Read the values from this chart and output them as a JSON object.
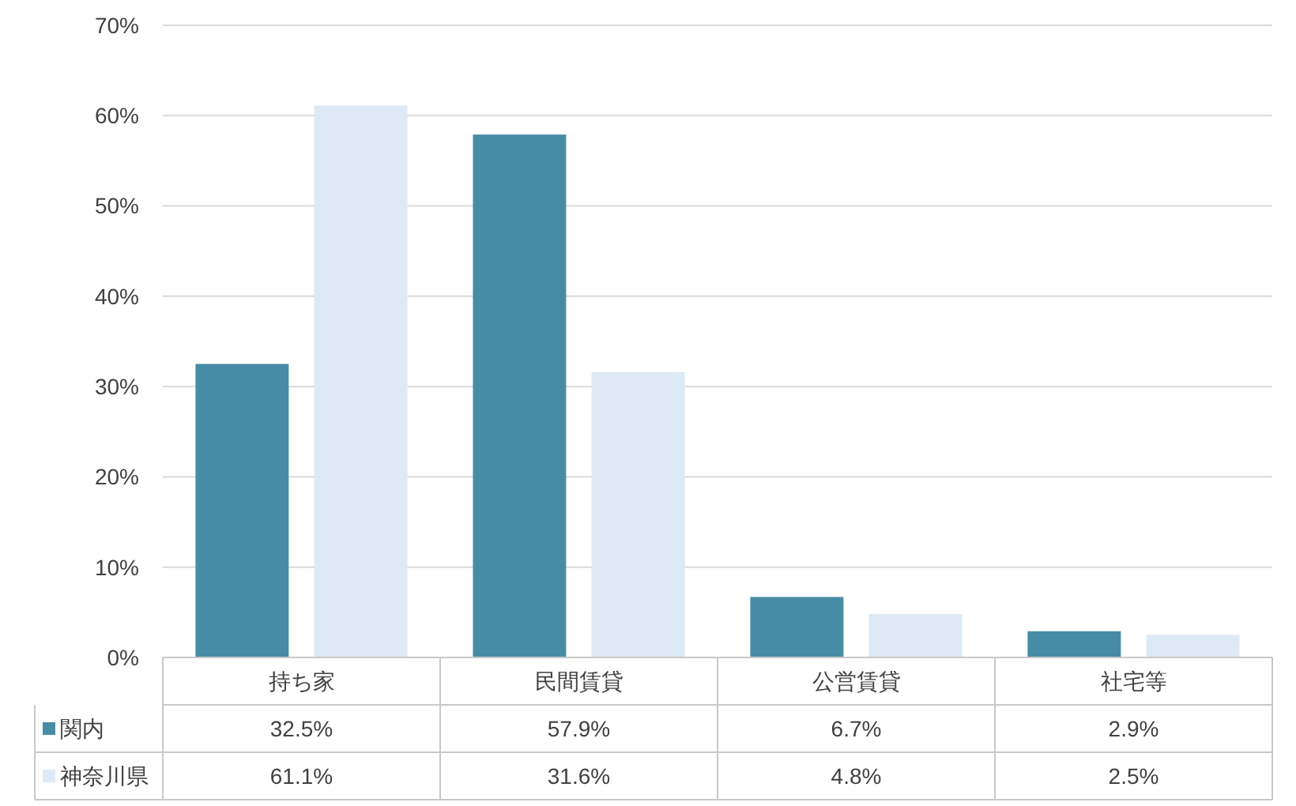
{
  "chart_data": {
    "type": "bar",
    "categories": [
      "持ち家",
      "民間賃貸",
      "公営賃貸",
      "社宅等"
    ],
    "series": [
      {
        "name": "関内",
        "color": "#478ca4",
        "values": [
          32.5,
          57.9,
          6.7,
          2.9
        ],
        "value_labels": [
          "32.5%",
          "57.9%",
          "6.7%",
          "2.9%"
        ]
      },
      {
        "name": "神奈川県",
        "color": "#dde9f4",
        "values": [
          61.1,
          31.6,
          4.8,
          2.5
        ],
        "value_labels": [
          "61.1%",
          "31.6%",
          "4.8%",
          "2.5%"
        ]
      }
    ],
    "ylim": [
      0,
      70
    ],
    "yticks": [
      {
        "value": 0,
        "label": "0%"
      },
      {
        "value": 10,
        "label": "10%"
      },
      {
        "value": 20,
        "label": "20%"
      },
      {
        "value": 30,
        "label": "30%"
      },
      {
        "value": 40,
        "label": "40%"
      },
      {
        "value": 50,
        "label": "50%"
      },
      {
        "value": 60,
        "label": "60%"
      },
      {
        "value": 70,
        "label": "70%"
      }
    ],
    "grid": "y",
    "legend": "bottom left"
  }
}
